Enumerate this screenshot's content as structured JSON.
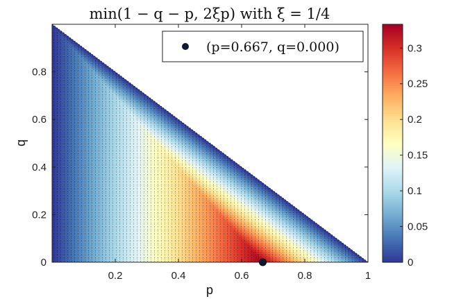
{
  "chart_data": {
    "type": "heatmap",
    "title": "min(1 − q − p, 2ξp) with ξ = 1/4",
    "xlabel": "p",
    "ylabel": "q",
    "xlim": [
      0,
      1
    ],
    "ylim": [
      0,
      1
    ],
    "xticks": [
      0.2,
      0.4,
      0.6,
      0.8,
      1
    ],
    "xtick_labels": [
      "0.2",
      "0.4",
      "0.6",
      "0.8",
      "1"
    ],
    "yticks": [
      0,
      0.2,
      0.4,
      0.6,
      0.8
    ],
    "ytick_labels": [
      "0",
      "0.2",
      "0.4",
      "0.6",
      "0.8"
    ],
    "function": "min(1 - q - p, 2*xi*p)",
    "xi": 0.25,
    "domain": "p + q <= 1",
    "colorbar": {
      "colormap": "red-yellow-blue (reversed)",
      "clim": [
        0,
        0.3333
      ],
      "ticks": [
        0,
        0.05,
        0.1,
        0.15,
        0.2,
        0.25,
        0.3
      ],
      "tick_labels": [
        "0",
        "0.05",
        "0.1",
        "0.15",
        "0.2",
        "0.25",
        "0.3"
      ]
    },
    "marker": {
      "p": 0.667,
      "q": 0.0,
      "label": "(p=0.667, q=0.000)",
      "color": "#0b1a33"
    },
    "legend_position": "top-right",
    "grid": false
  }
}
